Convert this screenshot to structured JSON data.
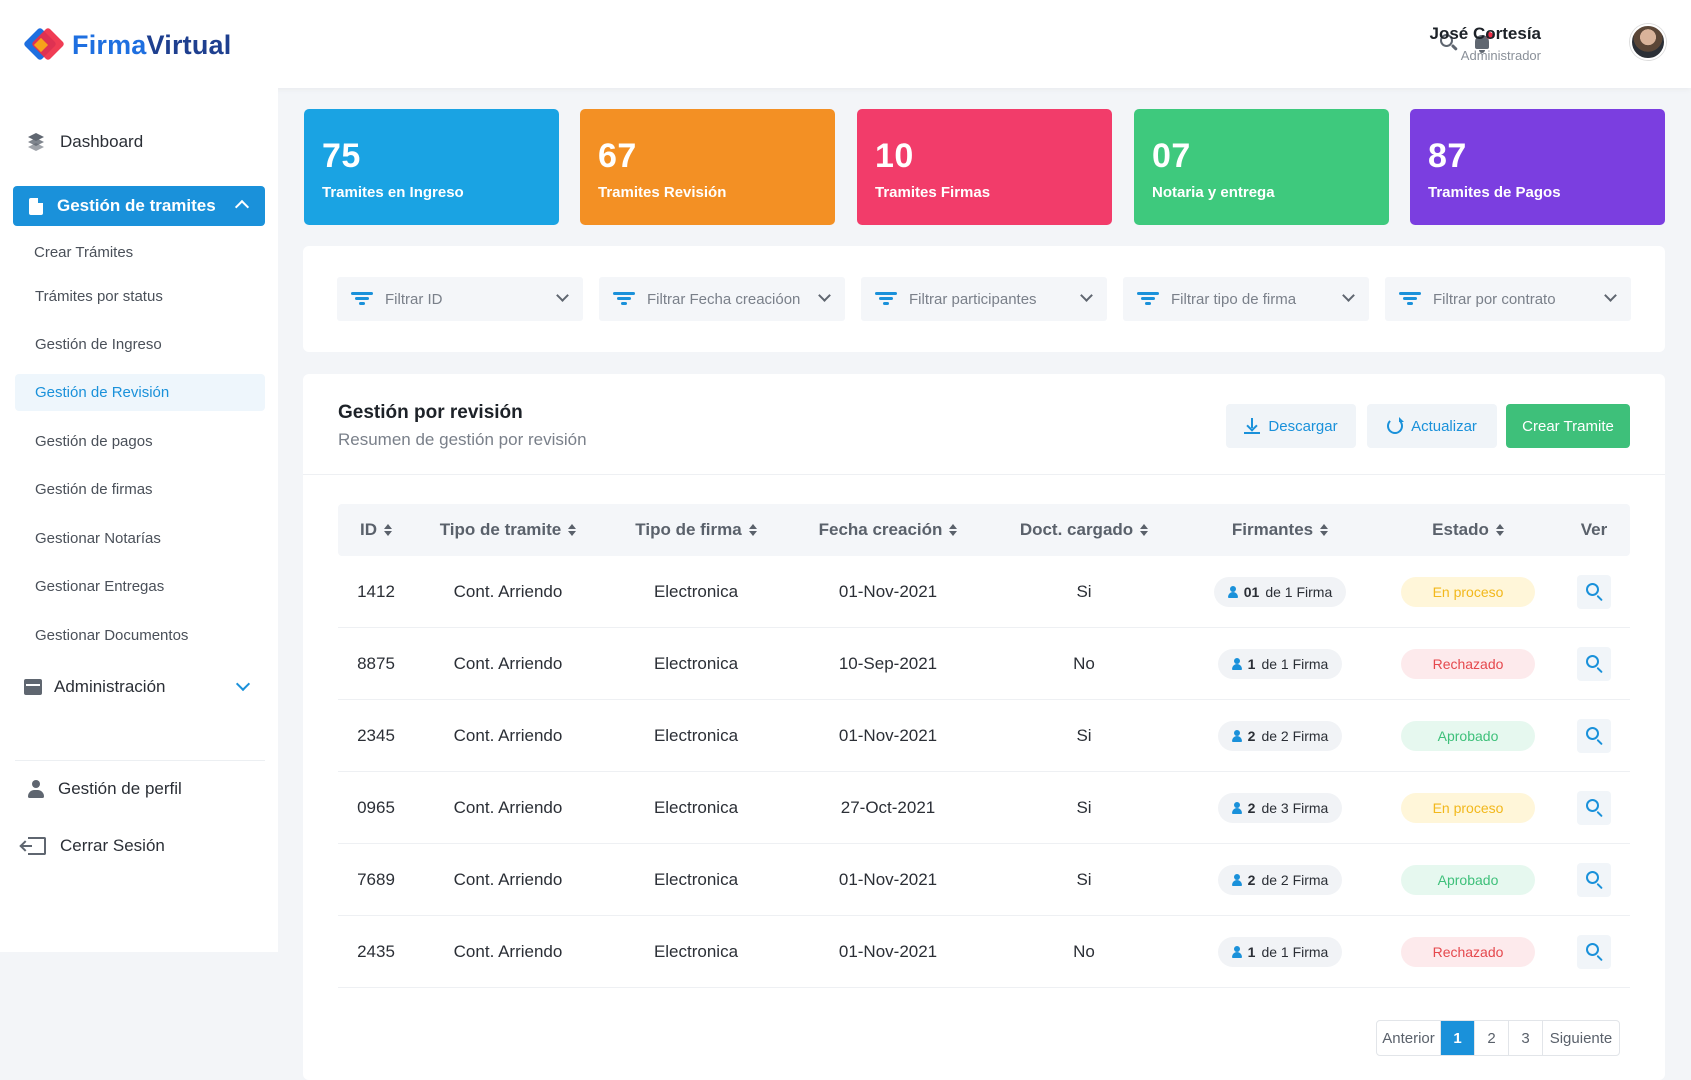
{
  "header": {
    "logo_part1": "Firma",
    "logo_part2": "Virtual",
    "user_name": "José Cortesía",
    "user_role": "Administrador"
  },
  "sidebar": {
    "dashboard": "Dashboard",
    "group_label": "Gestión de tramites",
    "items": [
      "Crear Trámites",
      "Trámites por status",
      "Gestión de Ingreso",
      "Gestión de Revisión",
      "Gestión de pagos",
      "Gestión de firmas",
      "Gestionar Notarías",
      "Gestionar Entregas",
      "Gestionar Documentos"
    ],
    "admin": "Administración",
    "profile": "Gestión de perfil",
    "logout": "Cerrar Sesión"
  },
  "stats": [
    {
      "value": "75",
      "label": "Tramites en Ingreso",
      "color": "#1aa3e3"
    },
    {
      "value": "67",
      "label": "Tramites Revisión",
      "color": "#f39024"
    },
    {
      "value": "10",
      "label": "Tramites Firmas",
      "color": "#f23c6a"
    },
    {
      "value": "07",
      "label": "Notaria y entrega",
      "color": "#3ec97d"
    },
    {
      "value": "87",
      "label": "Tramites de Pagos",
      "color": "#7b3ee0"
    }
  ],
  "filters": [
    "Filtrar ID",
    "Filtrar Fecha creacióon",
    "Filtrar participantes",
    "Filtrar tipo de firma",
    "Filtrar por contrato"
  ],
  "panel": {
    "title": "Gestión por revisión",
    "subtitle": "Resumen de gestión por revisión",
    "download": "Descargar",
    "refresh": "Actualizar",
    "create": "Crear Tramite"
  },
  "table": {
    "headers": [
      "ID",
      "Tipo de tramite",
      "Tipo de firma",
      "Fecha creación",
      "Doct. cargado",
      "Firmantes",
      "Estado",
      "Ver"
    ],
    "rows": [
      {
        "id": "1412",
        "tipo": "Cont. Arriendo",
        "firma": "Electronica",
        "fecha": "01-Nov-2021",
        "doc": "Si",
        "firm_n": "01",
        "firm_rest": "de 1 Firma",
        "estado": "En proceso"
      },
      {
        "id": "8875",
        "tipo": "Cont. Arriendo",
        "firma": "Electronica",
        "fecha": "10-Sep-2021",
        "doc": "No",
        "firm_n": "1",
        "firm_rest": "de 1 Firma",
        "estado": "Rechazado"
      },
      {
        "id": "2345",
        "tipo": "Cont. Arriendo",
        "firma": "Electronica",
        "fecha": "01-Nov-2021",
        "doc": "Si",
        "firm_n": "2",
        "firm_rest": "de 2 Firma",
        "estado": "Aprobado"
      },
      {
        "id": "0965",
        "tipo": "Cont. Arriendo",
        "firma": "Electronica",
        "fecha": "27-Oct-2021",
        "doc": "Si",
        "firm_n": "2",
        "firm_rest": "de 3 Firma",
        "estado": "En proceso"
      },
      {
        "id": "7689",
        "tipo": "Cont. Arriendo",
        "firma": "Electronica",
        "fecha": "01-Nov-2021",
        "doc": "Si",
        "firm_n": "2",
        "firm_rest": "de 2 Firma",
        "estado": "Aprobado"
      },
      {
        "id": "2435",
        "tipo": "Cont. Arriendo",
        "firma": "Electronica",
        "fecha": "01-Nov-2021",
        "doc": "No",
        "firm_n": "1",
        "firm_rest": "de 1 Firma",
        "estado": "Rechazado"
      }
    ]
  },
  "status_colors": {
    "En proceso": {
      "bg": "#fff6d9",
      "fg": "#f2b81c"
    },
    "Rechazado": {
      "bg": "#fdeaec",
      "fg": "#e5484d"
    },
    "Aprobado": {
      "bg": "#e6f8ef",
      "fg": "#3ec07a"
    }
  },
  "pagination": {
    "prev": "Anterior",
    "pages": [
      "1",
      "2",
      "3"
    ],
    "next": "Siguiente",
    "current": "1"
  }
}
